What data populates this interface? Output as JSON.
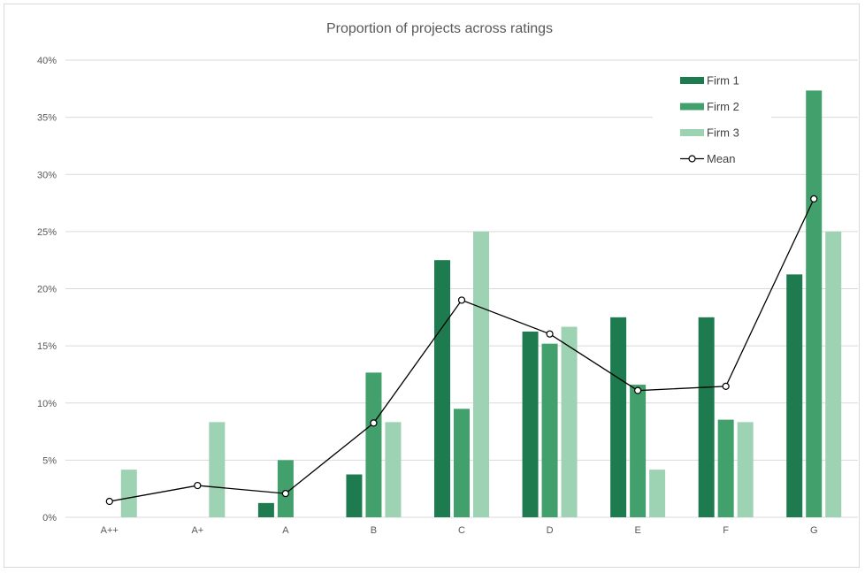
{
  "chart_data": {
    "type": "bar",
    "title": "Proportion of projects across ratings",
    "xlabel": "",
    "ylabel": "",
    "categories": [
      "A++",
      "A+",
      "A",
      "B",
      "C",
      "D",
      "E",
      "F",
      "G"
    ],
    "yticks": [
      "0%",
      "5%",
      "10%",
      "15%",
      "20%",
      "25%",
      "30%",
      "35%",
      "40%"
    ],
    "ylim": [
      0,
      40
    ],
    "grid": true,
    "legend_position": "top-right",
    "series": [
      {
        "name": "Firm 1",
        "kind": "bar",
        "color": "#1e7a4f",
        "values": [
          0,
          0,
          1.25,
          3.75,
          22.5,
          16.25,
          17.5,
          17.5,
          21.25
        ]
      },
      {
        "name": "Firm 2",
        "kind": "bar",
        "color": "#41a06b",
        "values": [
          0,
          0,
          5,
          12.66,
          9.49,
          15.19,
          11.6,
          8.54,
          37.34
        ]
      },
      {
        "name": "Firm 3",
        "kind": "bar",
        "color": "#9dd3b3",
        "values": [
          4.17,
          8.33,
          0,
          8.33,
          25,
          16.67,
          4.17,
          8.33,
          25
        ]
      },
      {
        "name": "Mean",
        "kind": "line",
        "color": "#000000",
        "values": [
          1.39,
          2.78,
          2.08,
          8.25,
          19.0,
          16.04,
          11.09,
          11.46,
          27.86
        ]
      }
    ]
  }
}
